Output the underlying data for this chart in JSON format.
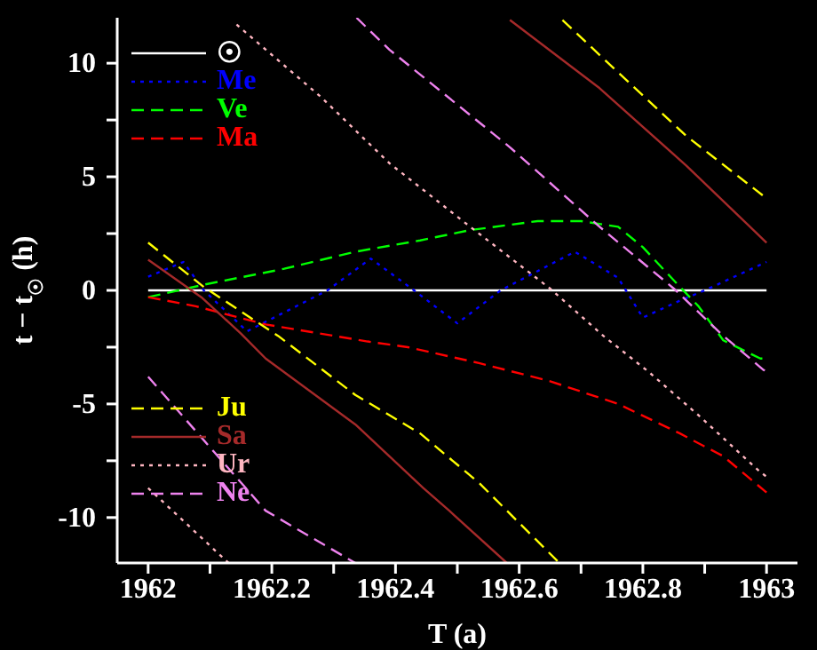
{
  "chart_data": {
    "type": "line",
    "xlabel": "T (a)",
    "ylabel": "t − t$_{☉}$ (h)",
    "xlim": [
      1961.95,
      1963.05
    ],
    "ylim": [
      -12,
      12
    ],
    "xticks": [
      1962,
      {
        "value": 1962.1,
        "label": null
      },
      1962.2,
      {
        "value": 1962.3,
        "label": null
      },
      1962.4,
      {
        "value": 1962.5,
        "label": null
      },
      1962.6,
      {
        "value": 1962.7,
        "label": null
      },
      1962.8,
      {
        "value": 1962.9,
        "label": null
      },
      1963
    ],
    "yticks": [
      -10,
      {
        "value": -7.5,
        "label": null
      },
      -5,
      {
        "value": -2.5,
        "label": null
      },
      0,
      {
        "value": 2.5,
        "label": null
      },
      5,
      {
        "value": 7.5,
        "label": null
      },
      10
    ],
    "grid": false,
    "legend": "left",
    "marker": "none",
    "series": [
      {
        "name": "☉",
        "color": "#ffffff",
        "line_style": "solid",
        "x": [
          1962,
          1963
        ],
        "values": [
          0,
          0
        ]
      },
      {
        "name": "Me",
        "color": "#0000ff",
        "line_style": "dotted",
        "x": [
          1962,
          1962.057,
          1962.09,
          1962.16,
          1962.29,
          1962.36,
          1962.43,
          1962.5,
          1962.57,
          1962.69,
          1962.76,
          1962.8,
          1962.86,
          1962.9,
          1963
        ],
        "values": [
          0.6,
          1.25,
          0,
          -1.8,
          0,
          1.4,
          0,
          -1.45,
          0,
          1.7,
          0.55,
          -1.2,
          -0.45,
          0,
          1.25
        ]
      },
      {
        "name": "Ve",
        "color": "#00ff00",
        "line_style": "dashed",
        "x": [
          1962,
          1962.09,
          1962.22,
          1962.335,
          1962.44,
          1962.52,
          1962.63,
          1962.7,
          1962.76,
          1962.8,
          1962.86,
          1962.89,
          1962.93,
          1962.99,
          1963
        ],
        "values": [
          -0.3,
          0.25,
          0.95,
          1.7,
          2.2,
          2.65,
          3.05,
          3.05,
          2.8,
          1.9,
          0.15,
          -0.7,
          -2.2,
          -3,
          -3
        ]
      },
      {
        "name": "Ma",
        "color": "#ff0000",
        "line_style": "dashed",
        "x": [
          1962,
          1962.077,
          1962.19,
          1962.355,
          1962.42,
          1962.535,
          1962.65,
          1962.76,
          1962.86,
          1962.93,
          1963
        ],
        "values": [
          -0.3,
          -0.7,
          -1.5,
          -2.25,
          -2.5,
          -3.2,
          -4,
          -5,
          -6.3,
          -7.3,
          -8.9
        ]
      },
      {
        "name": "Ju",
        "color": "#ffff00",
        "line_style": "dashed",
        "x": [
          1962,
          1962.09,
          1962.21,
          1962.335,
          1962.44,
          1962.536,
          1962.665,
          1962.667,
          1962.67,
          1962.756,
          1962.87,
          1963
        ],
        "values": [
          2.1,
          0.15,
          -2,
          -4.6,
          -6.3,
          -8.5,
          -12,
          null,
          11.9,
          9.7,
          6.8,
          4.05
        ]
      },
      {
        "name": "Sa",
        "color": "#a52a2a",
        "line_style": "solid",
        "x": [
          1962,
          1962.086,
          1962.15,
          1962.19,
          1962.335,
          1962.445,
          1962.487,
          1962.58,
          1962.582,
          1962.585,
          1962.73,
          1962.87,
          1963
        ],
        "values": [
          1.35,
          -0.3,
          -1.9,
          -3,
          -5.9,
          -8.7,
          -9.7,
          -12,
          null,
          11.9,
          8.9,
          5.5,
          2.1
        ]
      },
      {
        "name": "Ur",
        "color": "#ffb6c1",
        "line_style": "dotted",
        "x": [
          1962,
          1962.13,
          1962.136,
          1962.143,
          1962.28,
          1962.39,
          1962.516,
          1962.65,
          1962.736,
          1962.81,
          1962.89,
          1962.99,
          1963
        ],
        "values": [
          -8.7,
          -12,
          null,
          11.7,
          8.5,
          5.6,
          2.9,
          0.08,
          -2,
          -3.6,
          -5.5,
          -8,
          -8.2
        ]
      },
      {
        "name": "Ne",
        "color": "#ee82ee",
        "line_style": "dashed",
        "x": [
          1962,
          1962.19,
          1962.335,
          1962.336,
          1962.337,
          1962.39,
          1962.585,
          1962.73,
          1962.85,
          1962.93,
          1962.995,
          1963
        ],
        "values": [
          -3.8,
          -9.7,
          -12,
          null,
          12,
          10.6,
          6.3,
          2.8,
          0.08,
          -2,
          -3.5,
          -3.55
        ]
      }
    ]
  }
}
